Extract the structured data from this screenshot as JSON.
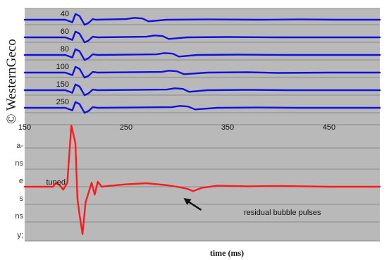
{
  "watermark": "© WesternGeco",
  "side_text_fragments": [
    "a-",
    "ns",
    "e",
    "s",
    "ns",
    "y;"
  ],
  "colors": {
    "panel": "#b9b9b9",
    "grid": "#8c8c8c",
    "individual_series": "#1010e0",
    "tuned_series": "#ff1a1a"
  },
  "chart_data": {
    "type": "line",
    "xlabel": "time (ms)",
    "xlim": [
      150,
      500
    ],
    "xticks": [
      150,
      250,
      350,
      450
    ],
    "grid": true,
    "series": [
      {
        "name": "40",
        "x": [
          150,
          190,
          197,
          200,
          204,
          209,
          213,
          217,
          220,
          250,
          258,
          266,
          272,
          290,
          330,
          380,
          420,
          460,
          500
        ],
        "y": [
          0,
          0,
          -0.4,
          0.9,
          0.6,
          -0.8,
          -0.5,
          0.1,
          0,
          0.1,
          0.3,
          0.2,
          -0.25,
          0,
          0.05,
          0,
          0.05,
          0,
          0
        ]
      },
      {
        "name": "60",
        "x": [
          150,
          190,
          197,
          200,
          204,
          209,
          213,
          217,
          222,
          270,
          278,
          286,
          292,
          310,
          350,
          400,
          450,
          500
        ],
        "y": [
          0,
          0,
          -0.4,
          0.9,
          0.6,
          -0.8,
          -0.5,
          0.1,
          0,
          0.1,
          0.3,
          0.2,
          -0.25,
          0,
          0.05,
          0,
          0,
          0
        ]
      },
      {
        "name": "80",
        "x": [
          150,
          190,
          197,
          200,
          204,
          209,
          213,
          217,
          222,
          280,
          288,
          296,
          302,
          320,
          360,
          410,
          450,
          500
        ],
        "y": [
          0,
          0,
          -0.4,
          0.9,
          0.6,
          -0.8,
          -0.5,
          0.1,
          0,
          0.1,
          0.3,
          0.2,
          -0.25,
          0,
          0.05,
          0,
          0,
          0
        ]
      },
      {
        "name": "100",
        "x": [
          150,
          190,
          197,
          200,
          204,
          209,
          213,
          217,
          222,
          285,
          292,
          300,
          307,
          330,
          370,
          400,
          450,
          500
        ],
        "y": [
          0,
          0,
          -0.4,
          0.9,
          0.6,
          -0.8,
          -0.5,
          0.1,
          0,
          0.1,
          0.3,
          0.2,
          -0.25,
          0,
          0.05,
          -0.05,
          0,
          0
        ]
      },
      {
        "name": "150",
        "x": [
          150,
          190,
          197,
          200,
          204,
          209,
          213,
          217,
          222,
          290,
          298,
          306,
          312,
          330,
          370,
          410,
          450,
          500
        ],
        "y": [
          0,
          0,
          -0.4,
          0.9,
          0.6,
          -0.8,
          -0.5,
          0.1,
          0,
          0.1,
          0.3,
          0.2,
          -0.25,
          0,
          0.05,
          0,
          0,
          0
        ]
      },
      {
        "name": "250",
        "x": [
          150,
          190,
          197,
          200,
          204,
          209,
          213,
          217,
          222,
          295,
          303,
          311,
          318,
          340,
          380,
          420,
          460,
          500
        ],
        "y": [
          0,
          0,
          -0.4,
          0.9,
          0.6,
          -0.8,
          -0.5,
          0.1,
          0,
          0.1,
          0.3,
          0.2,
          -0.25,
          0,
          0.05,
          0,
          0,
          0
        ]
      },
      {
        "name": "tuned",
        "x": [
          150,
          178,
          181,
          185,
          188,
          192,
          196,
          200,
          202,
          204,
          207,
          210,
          213,
          216,
          219,
          222,
          226,
          235,
          250,
          270,
          290,
          300,
          310,
          316,
          325,
          340,
          370,
          400,
          450,
          500
        ],
        "y": [
          0,
          0,
          0.2,
          0.05,
          -0.15,
          0.2,
          3.1,
          2.2,
          -0.6,
          -1.4,
          -2.4,
          -0.8,
          -0.3,
          0.2,
          -0.4,
          0.25,
          0,
          0.05,
          0.12,
          0.18,
          0.08,
          0,
          -0.1,
          -0.22,
          -0.05,
          0.05,
          0.02,
          0.04,
          0,
          0
        ]
      }
    ],
    "annotations": [
      {
        "text": "residual bubble pulses",
        "arrow_to_x": 317,
        "arrow_to_series": "tuned"
      }
    ]
  }
}
